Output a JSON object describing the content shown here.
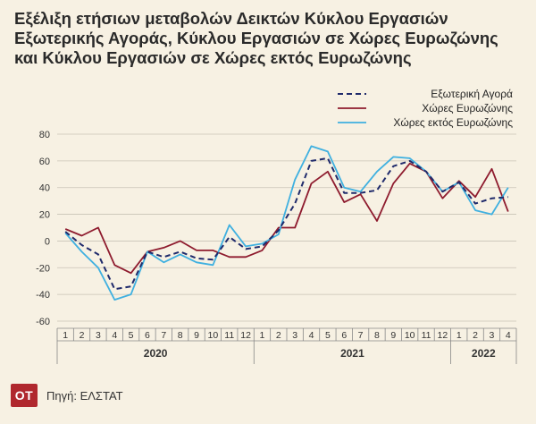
{
  "title_lines": [
    "Εξέλιξη ετήσιων μεταβολών Δεικτών Κύκλου Εργασιών",
    "Εξωτερικής Αγοράς, Κύκλου Εργασιών σε Χώρες Ευρωζώνης",
    "και Κύκλου Εργασιών σε Χώρες εκτός Ευρωζώνης"
  ],
  "logo_text": "ΟΤ",
  "source_text": "Πηγή: ΕΛΣΤΑΤ",
  "colors": {
    "background": "#f7f1e3",
    "series_1": "#1f2a6b",
    "series_2": "#8e1b2e",
    "series_3": "#3fb0e0",
    "grid": "#c9c3b6",
    "logo": "#b0282e"
  },
  "chart_data": {
    "type": "line",
    "categories": [
      "1",
      "2",
      "3",
      "4",
      "5",
      "6",
      "7",
      "8",
      "9",
      "10",
      "11",
      "12",
      "1",
      "2",
      "3",
      "4",
      "5",
      "6",
      "7",
      "8",
      "9",
      "10",
      "11",
      "12",
      "1",
      "2",
      "3",
      "4"
    ],
    "groups": [
      {
        "label": "2020",
        "count": 12
      },
      {
        "label": "2021",
        "count": 12
      },
      {
        "label": "2022",
        "count": 4
      }
    ],
    "ylim": [
      -60,
      80
    ],
    "yticks": [
      -60,
      -40,
      -20,
      0,
      20,
      40,
      60,
      80
    ],
    "grid": true,
    "legend_position": "top-right",
    "series": [
      {
        "name": "Εξωτερική Αγορά",
        "style": "dashed",
        "values": [
          7,
          -3,
          -10,
          -36,
          -34,
          -8,
          -12,
          -8,
          -13,
          -14,
          3,
          -6,
          -4,
          8,
          28,
          60,
          62,
          36,
          36,
          38,
          56,
          60,
          52,
          37,
          44,
          28,
          32,
          33
        ]
      },
      {
        "name": "Χώρες Ευρωζώνης",
        "style": "solid",
        "values": [
          9,
          4,
          10,
          -18,
          -24,
          -8,
          -5,
          0,
          -7,
          -7,
          -12,
          -12,
          -7,
          10,
          10,
          43,
          52,
          29,
          35,
          15,
          43,
          58,
          52,
          32,
          45,
          33,
          54,
          22
        ]
      },
      {
        "name": "Χώρες εκτός Ευρωζώνης",
        "style": "solid",
        "values": [
          6,
          -8,
          -20,
          -44,
          -40,
          -8,
          -16,
          -10,
          -16,
          -18,
          12,
          -4,
          -2,
          5,
          46,
          71,
          67,
          40,
          37,
          52,
          63,
          62,
          52,
          37,
          44,
          23,
          20,
          40
        ]
      }
    ]
  }
}
